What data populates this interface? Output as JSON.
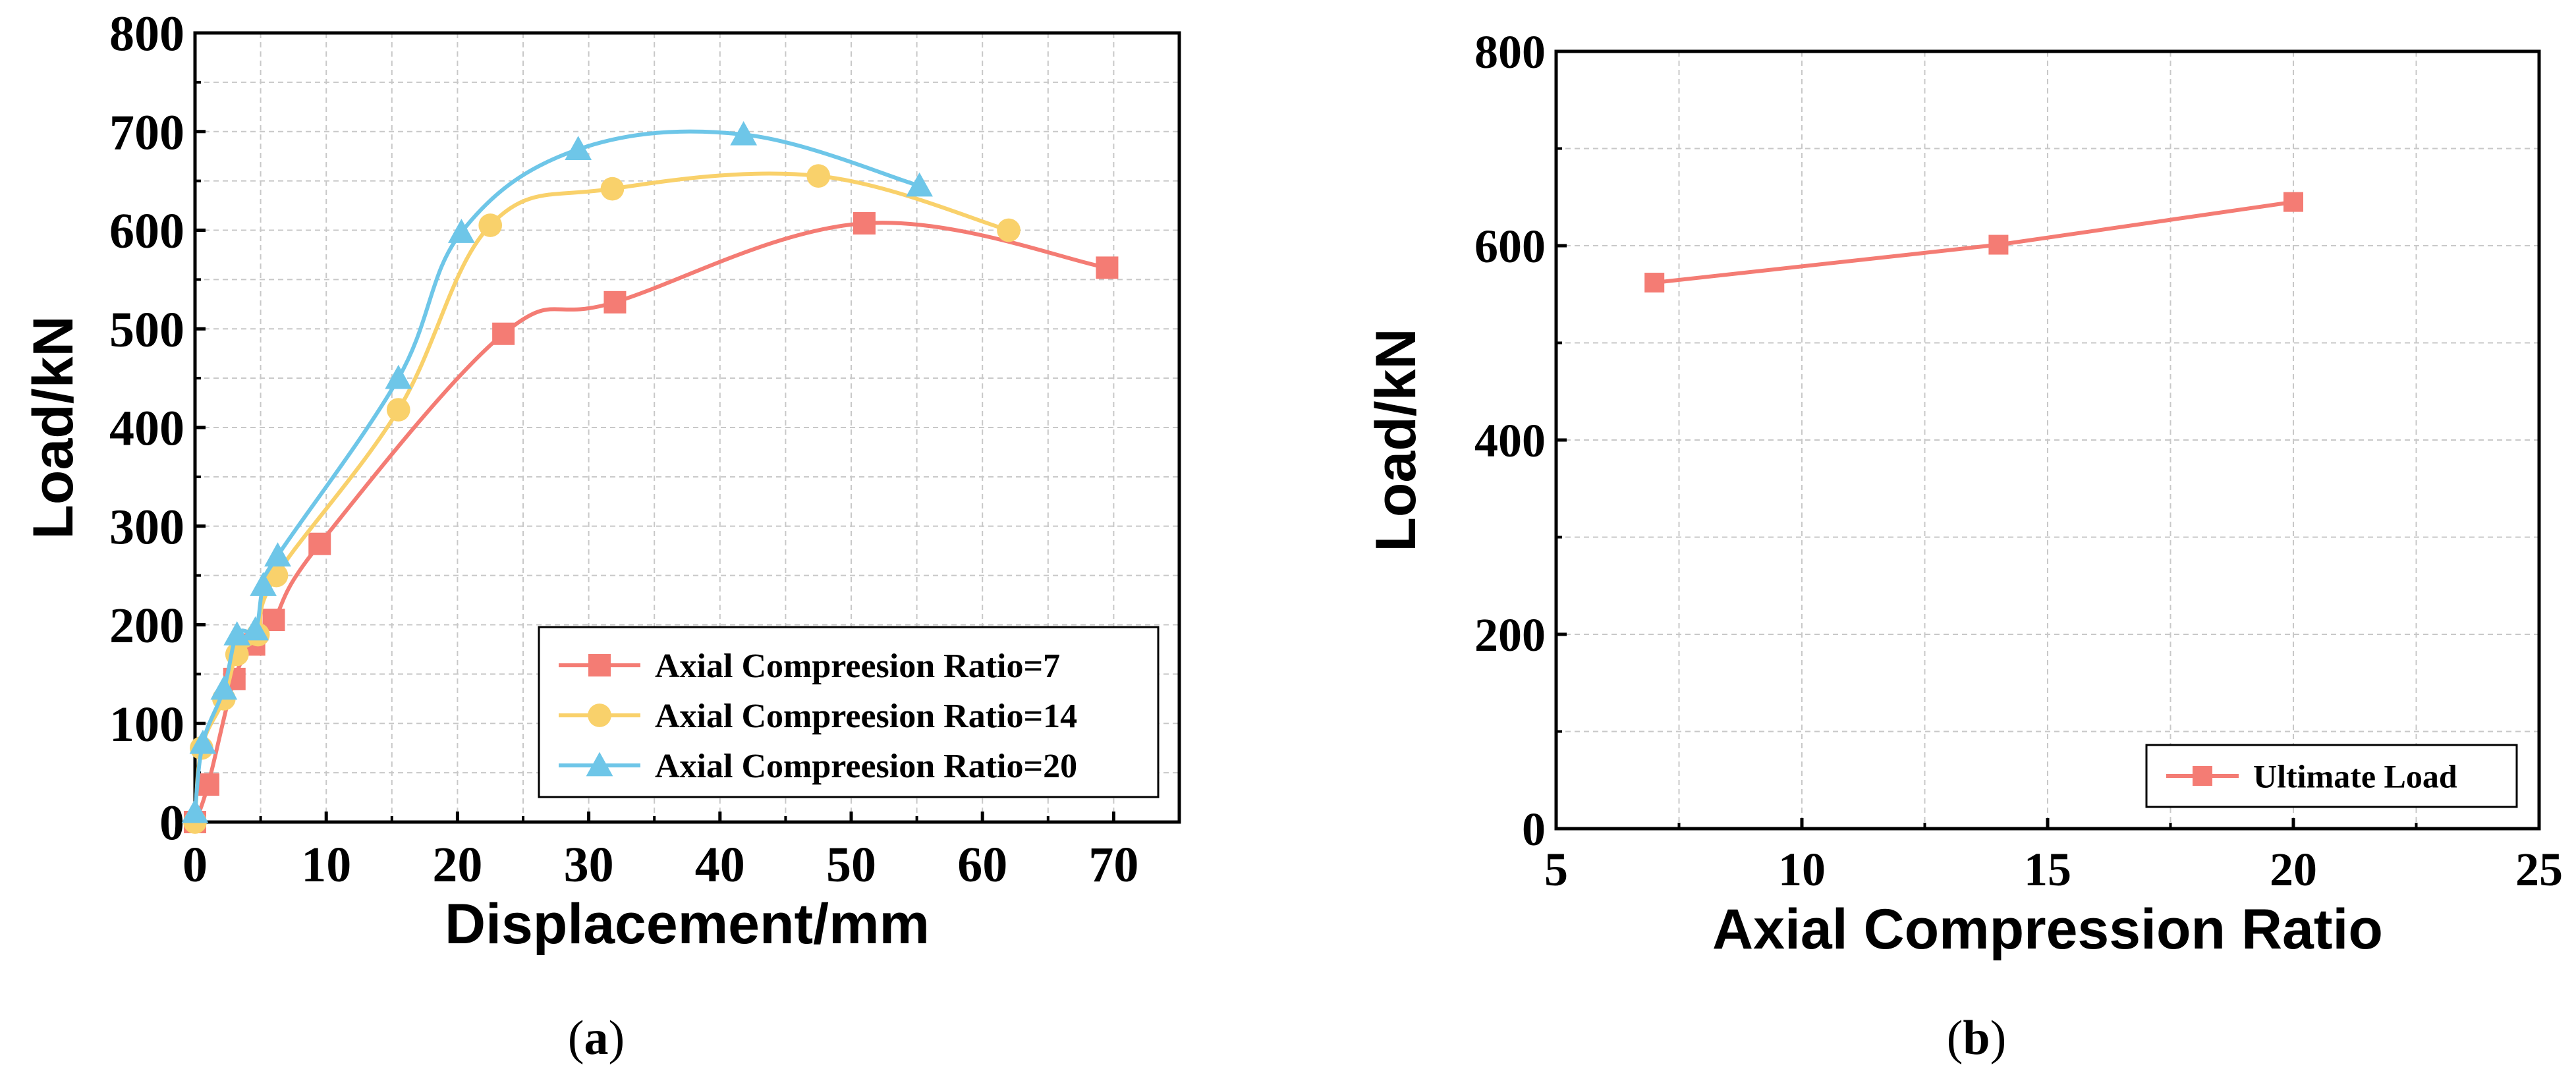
{
  "chart_data": [
    {
      "type": "line",
      "caption": "(a)",
      "caption_letter": "a",
      "xlabel": "Displacement/mm",
      "ylabel": "Load/kN",
      "xlim": [
        0,
        75
      ],
      "ylim": [
        0,
        800
      ],
      "xticks": [
        0,
        10,
        20,
        30,
        40,
        50,
        60,
        70
      ],
      "yticks": [
        0,
        100,
        200,
        300,
        400,
        500,
        600,
        700,
        800
      ],
      "grid": true,
      "legend_position": "bottom-right",
      "series": [
        {
          "name": "Axial Compreesion Ratio=7",
          "color": "#f47c74",
          "marker": "square",
          "x": [
            0,
            1,
            3,
            4.5,
            6,
            9.5,
            23.5,
            32,
            51,
            69.5
          ],
          "y": [
            0,
            38,
            145,
            180,
            205,
            282,
            495,
            527,
            607,
            562
          ]
        },
        {
          "name": "Axial Compreesion Ratio=14",
          "color": "#f9d16b",
          "marker": "circle",
          "x": [
            0,
            0.5,
            2.2,
            3.2,
            4.8,
            6.2,
            15.5,
            22.5,
            31.8,
            47.5,
            62
          ],
          "y": [
            0,
            75,
            125,
            170,
            190,
            250,
            418,
            605,
            642,
            655,
            600
          ]
        },
        {
          "name": "Axial Compreesion Ratio=20",
          "color": "#6ec6e8",
          "marker": "triangle",
          "x": [
            0,
            0.6,
            2.2,
            3.2,
            4.6,
            5.2,
            6.3,
            15.5,
            20.3,
            29.2,
            41.8,
            55.2
          ],
          "y": [
            10,
            80,
            135,
            190,
            195,
            240,
            270,
            450,
            598,
            682,
            697,
            645
          ]
        }
      ]
    },
    {
      "type": "line",
      "caption": "(b)",
      "caption_letter": "b",
      "xlabel": "Axial Compression Ratio",
      "ylabel": "Load/kN",
      "xlim": [
        5,
        25
      ],
      "ylim": [
        0,
        800
      ],
      "xticks": [
        5,
        10,
        15,
        20,
        25
      ],
      "yticks": [
        0,
        200,
        400,
        600,
        800
      ],
      "grid": true,
      "legend_position": "bottom-right",
      "series": [
        {
          "name": "Ultimate Load",
          "color": "#f47c74",
          "marker": "square",
          "x": [
            7,
            14,
            20
          ],
          "y": [
            562,
            601,
            645
          ]
        }
      ]
    }
  ]
}
